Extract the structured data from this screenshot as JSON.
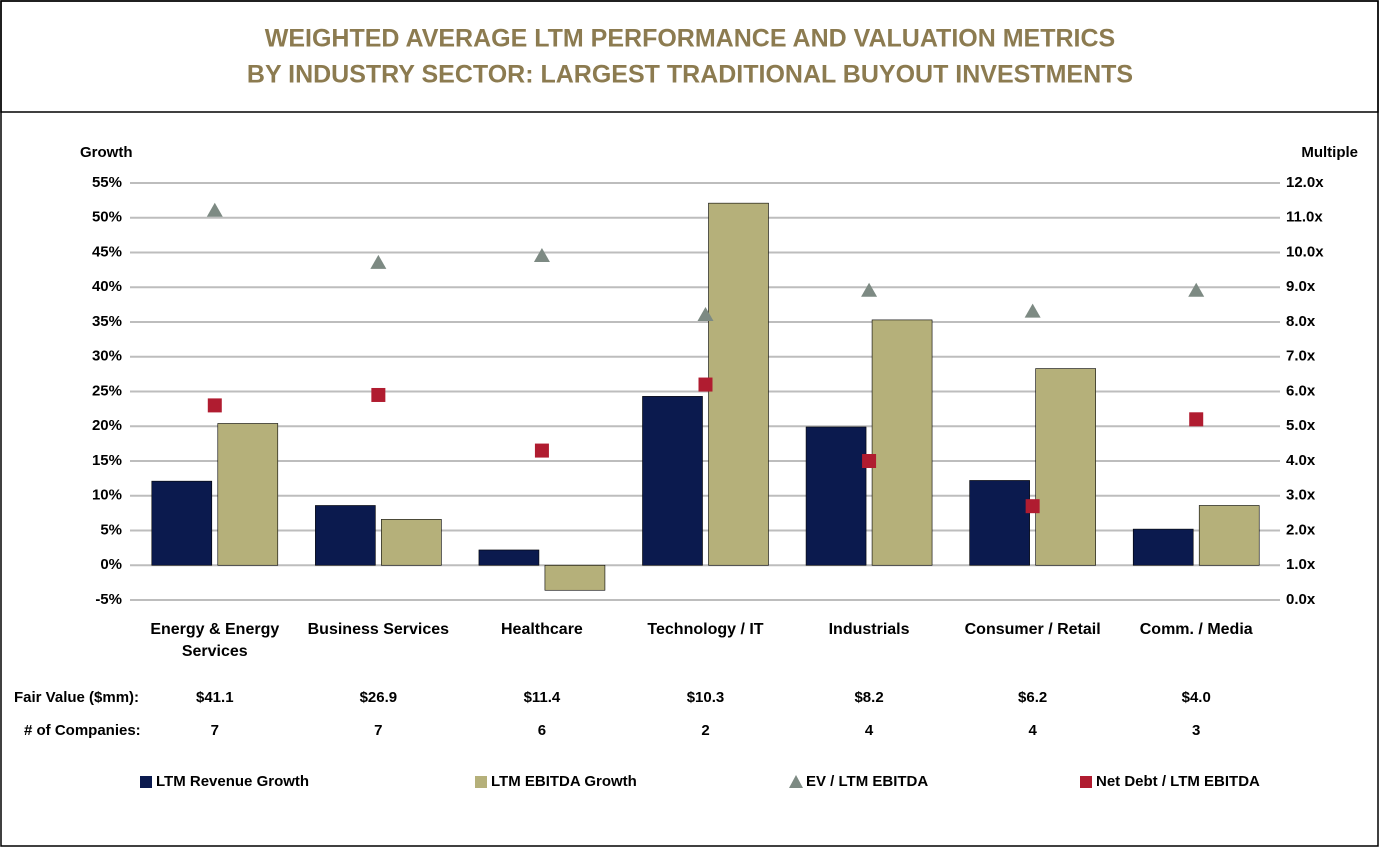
{
  "chart_data": {
    "type": "bar",
    "title_lines": [
      "WEIGHTED AVERAGE LTM PERFORMANCE AND VALUATION METRICS",
      "BY INDUSTRY SECTOR: LARGEST TRADITIONAL BUYOUT INVESTMENTS"
    ],
    "y_label": "Growth",
    "y2_label": "Multiple",
    "categories": [
      "Energy & Energy Services",
      "Business Services",
      "Healthcare",
      "Technology / IT",
      "Industrials",
      "Consumer / Retail",
      "Comm. / Media"
    ],
    "series": [
      {
        "name": "LTM Revenue Growth",
        "type": "bar",
        "color": "#0b1a4e",
        "axis": "y",
        "values": [
          12.1,
          8.6,
          2.2,
          24.3,
          19.9,
          12.2,
          5.2
        ]
      },
      {
        "name": "LTM EBITDA Growth",
        "type": "bar",
        "color": "#b5b07a",
        "axis": "y",
        "values": [
          20.4,
          6.6,
          -3.6,
          52.1,
          35.3,
          28.3,
          8.6
        ]
      },
      {
        "name": "EV / LTM EBITDA",
        "type": "triangle",
        "color": "#7d8a83",
        "axis": "y2",
        "values": [
          11.2,
          9.7,
          9.9,
          8.2,
          8.9,
          8.3,
          8.9
        ]
      },
      {
        "name": "Net Debt / LTM EBITDA",
        "type": "square",
        "color": "#b01c30",
        "axis": "y2",
        "values": [
          5.6,
          5.9,
          4.3,
          6.2,
          4.0,
          2.7,
          5.2
        ]
      }
    ],
    "ylim": [
      -5,
      55
    ],
    "yticks": [
      {
        "value": -5,
        "label": "-5%"
      },
      {
        "value": 0,
        "label": "0%"
      },
      {
        "value": 5,
        "label": "5%"
      },
      {
        "value": 10,
        "label": "10%"
      },
      {
        "value": 15,
        "label": "15%"
      },
      {
        "value": 20,
        "label": "20%"
      },
      {
        "value": 25,
        "label": "25%"
      },
      {
        "value": 30,
        "label": "30%"
      },
      {
        "value": 35,
        "label": "35%"
      },
      {
        "value": 40,
        "label": "40%"
      },
      {
        "value": 45,
        "label": "45%"
      },
      {
        "value": 50,
        "label": "50%"
      },
      {
        "value": 55,
        "label": "55%"
      }
    ],
    "y2lim": [
      0,
      12
    ],
    "y2ticks": [
      {
        "value": 0,
        "label": "0.0x"
      },
      {
        "value": 1,
        "label": "1.0x"
      },
      {
        "value": 2,
        "label": "2.0x"
      },
      {
        "value": 3,
        "label": "3.0x"
      },
      {
        "value": 4,
        "label": "4.0x"
      },
      {
        "value": 5,
        "label": "5.0x"
      },
      {
        "value": 6,
        "label": "6.0x"
      },
      {
        "value": 7,
        "label": "7.0x"
      },
      {
        "value": 8,
        "label": "8.0x"
      },
      {
        "value": 9,
        "label": "9.0x"
      },
      {
        "value": 10,
        "label": "10.0x"
      },
      {
        "value": 11,
        "label": "11.0x"
      },
      {
        "value": 12,
        "label": "12.0x"
      }
    ],
    "grid": true,
    "fair_value_label": "Fair Value ($mm):",
    "fair_values": [
      "$41.1",
      "$26.9",
      "$11.4",
      "$10.3",
      "$8.2",
      "$6.2",
      "$4.0"
    ],
    "companies_label": "# of Companies:",
    "companies": [
      7,
      7,
      6,
      2,
      4,
      4,
      3
    ]
  }
}
